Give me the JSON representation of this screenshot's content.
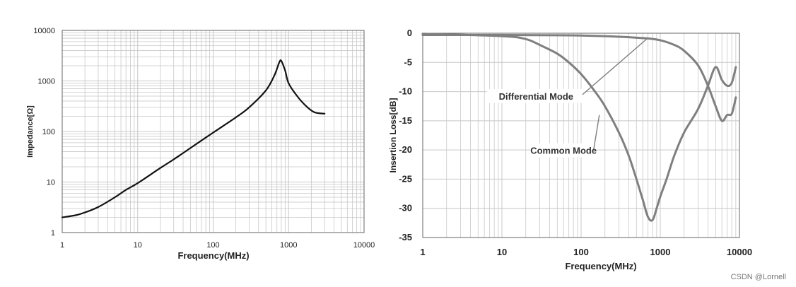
{
  "colors": {
    "left_curve": "#111111",
    "right_curve": "#7f7f7f",
    "grid": "#c8c8c8",
    "axis": "#666666",
    "text": "#222222"
  },
  "watermark": "CSDN @Lornell",
  "chart_data": [
    {
      "type": "line",
      "title": "",
      "xlabel": "Frequency(MHz)",
      "ylabel": "Impedance[Ω]",
      "xscale": "log",
      "yscale": "log",
      "xlim": [
        1,
        10000
      ],
      "ylim": [
        1,
        10000
      ],
      "xticks": [
        1,
        10,
        100,
        1000,
        10000
      ],
      "xtick_labels": [
        "1",
        "10",
        "100",
        "1000",
        "10000"
      ],
      "yticks": [
        1,
        10,
        100,
        1000,
        10000
      ],
      "ytick_labels": [
        "1",
        "10",
        "100",
        "1000",
        "10000"
      ],
      "grid": true,
      "series": [
        {
          "name": "Impedance",
          "x": [
            1,
            1.5,
            2,
            3,
            5,
            7,
            10,
            20,
            30,
            50,
            100,
            200,
            300,
            500,
            650,
            750,
            800,
            900,
            1000,
            1300,
            1700,
            2200,
            3000
          ],
          "y": [
            2,
            2.2,
            2.5,
            3.2,
            5,
            7,
            9.5,
            19,
            28,
            47,
            95,
            190,
            300,
            650,
            1300,
            2300,
            2500,
            1600,
            900,
            500,
            320,
            240,
            225
          ]
        }
      ]
    },
    {
      "type": "line",
      "title": "",
      "xlabel": "Frequency(MHz)",
      "ylabel": "Insertion Loss[dB]",
      "xscale": "log",
      "xlim": [
        1,
        10000
      ],
      "ylim": [
        -35,
        0
      ],
      "xticks": [
        1,
        10,
        100,
        1000,
        10000
      ],
      "xtick_labels": [
        "1",
        "10",
        "100",
        "1000",
        "10000"
      ],
      "yticks": [
        0,
        -5,
        -10,
        -15,
        -20,
        -25,
        -30,
        -35
      ],
      "ytick_labels": [
        "0",
        "-5",
        "-10",
        "-15",
        "-20",
        "-25",
        "-30",
        "-35"
      ],
      "grid": true,
      "series": [
        {
          "name": "Differential Mode",
          "x": [
            1,
            10,
            50,
            100,
            300,
            700,
            1000,
            1500,
            2000,
            3000,
            4000,
            5000,
            6000,
            7000,
            8000,
            9000
          ],
          "y": [
            -0.3,
            -0.3,
            -0.35,
            -0.4,
            -0.6,
            -0.9,
            -1.2,
            -2,
            -3,
            -5.5,
            -9,
            -12.5,
            -15,
            -14,
            -13.8,
            -11
          ]
        },
        {
          "name": "Common Mode",
          "x": [
            1,
            10,
            20,
            30,
            50,
            70,
            100,
            150,
            200,
            300,
            400,
            500,
            600,
            700,
            800,
            900,
            1000,
            1200,
            1500,
            2000,
            3000,
            4000,
            5000,
            6000,
            7000,
            8000,
            9000
          ],
          "y": [
            -0.1,
            -0.5,
            -1,
            -2,
            -3.5,
            -5,
            -7,
            -10,
            -12.5,
            -17,
            -21,
            -25,
            -28.5,
            -31.5,
            -32,
            -30,
            -28,
            -25,
            -21,
            -17,
            -13,
            -9,
            -5.8,
            -8,
            -9,
            -8.5,
            -5.8
          ]
        }
      ],
      "annotations": [
        {
          "text": "Differential Mode",
          "x": 27,
          "y": -11,
          "arrow_to_x": 700,
          "arrow_to_y": -0.8
        },
        {
          "text": "Common Mode",
          "x": 60,
          "y": -20.3,
          "arrow_to_x": 170,
          "arrow_to_y": -14
        }
      ]
    }
  ]
}
